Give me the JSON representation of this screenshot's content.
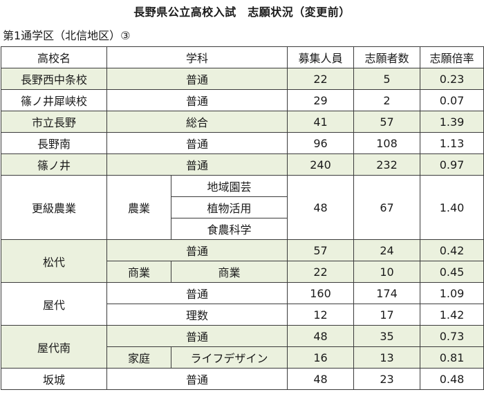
{
  "title": "長野県公立高校入試　志願状況（変更前）",
  "subtitle": "第1通学区（北信地区）③",
  "headers": {
    "school": "高校名",
    "department": "学科",
    "capacity": "募集人員",
    "applicants": "志願者数",
    "ratio": "志願倍率"
  },
  "rows": [
    {
      "school": "長野西中条校",
      "department": "普通",
      "capacity": "22",
      "applicants": "5",
      "ratio": "0.23"
    },
    {
      "school": "篠ノ井犀峡校",
      "department": "普通",
      "capacity": "29",
      "applicants": "2",
      "ratio": "0.07"
    },
    {
      "school": "市立長野",
      "department": "総合",
      "capacity": "41",
      "applicants": "57",
      "ratio": "1.39"
    },
    {
      "school": "長野南",
      "department": "普通",
      "capacity": "96",
      "applicants": "108",
      "ratio": "1.13"
    },
    {
      "school": "篠ノ井",
      "department": "普通",
      "capacity": "240",
      "applicants": "232",
      "ratio": "0.97"
    }
  ],
  "kosho": {
    "school": "更級農業",
    "department": "農業",
    "courses": [
      "地域園芸",
      "植物活用",
      "食農科学"
    ],
    "capacity": "48",
    "applicants": "67",
    "ratio": "1.40"
  },
  "matsushiro": {
    "school": "松代",
    "rows": [
      {
        "department": "普通",
        "capacity": "57",
        "applicants": "24",
        "ratio": "0.42"
      },
      {
        "department": "商業",
        "course": "商業",
        "capacity": "22",
        "applicants": "10",
        "ratio": "0.45"
      }
    ]
  },
  "yashiro": {
    "school": "屋代",
    "rows": [
      {
        "department": "普通",
        "capacity": "160",
        "applicants": "174",
        "ratio": "1.09"
      },
      {
        "department": "理数",
        "capacity": "12",
        "applicants": "17",
        "ratio": "1.42"
      }
    ]
  },
  "yashiro_minami": {
    "school": "屋代南",
    "rows": [
      {
        "department": "普通",
        "capacity": "48",
        "applicants": "35",
        "ratio": "0.73"
      },
      {
        "department": "家庭",
        "course": "ライフデザイン",
        "capacity": "16",
        "applicants": "13",
        "ratio": "0.81"
      }
    ]
  },
  "sakaki": {
    "school": "坂城",
    "department": "普通",
    "capacity": "48",
    "applicants": "23",
    "ratio": "0.48"
  },
  "colors": {
    "highlight_row": "#ebf1de",
    "border": "#3a3a3a"
  }
}
